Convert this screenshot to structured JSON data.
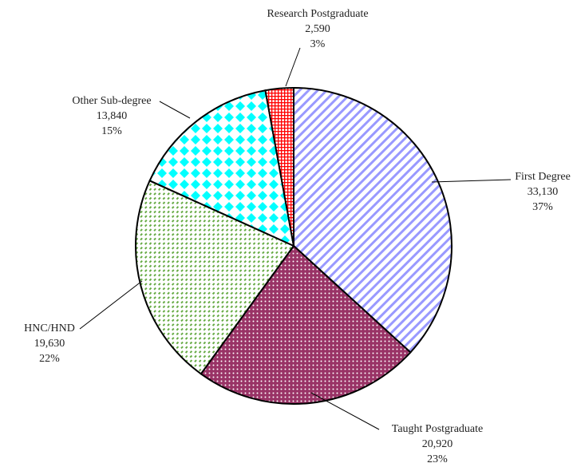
{
  "chart_data": {
    "type": "pie",
    "categories": [
      "First Degree",
      "Taught Postgraduate",
      "HNC/HND",
      "Other Sub-degree",
      "Research Postgraduate"
    ],
    "values": [
      33130,
      20920,
      19630,
      13840,
      2590
    ],
    "value_labels": [
      "33,130",
      "20,920",
      "19,630",
      "13,840",
      "2,590"
    ],
    "percents": [
      37,
      23,
      22,
      15,
      3
    ],
    "percent_labels": [
      "37%",
      "23%",
      "22%",
      "15%",
      "3%"
    ],
    "colors": [
      "#9999ff",
      "#993366",
      "#66aa44",
      "#00ffff",
      "#ff0000"
    ]
  }
}
